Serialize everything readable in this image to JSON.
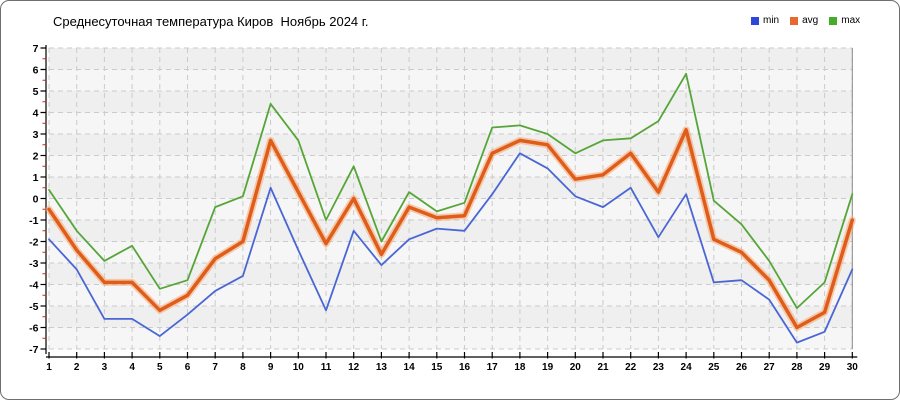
{
  "title": "Среднесуточная температура Киров  Ноябрь 2024 г.",
  "legend": [
    {
      "label": "min",
      "color": "#2b46d9"
    },
    {
      "label": "avg",
      "color": "#e8692f"
    },
    {
      "label": "max",
      "color": "#45ad27"
    }
  ],
  "chart_data": {
    "type": "line",
    "title": "Среднесуточная температура Киров  Ноябрь 2024 г.",
    "xlabel": "",
    "ylabel": "",
    "x": [
      1,
      2,
      3,
      4,
      5,
      6,
      7,
      8,
      9,
      10,
      11,
      12,
      13,
      14,
      15,
      16,
      17,
      18,
      19,
      20,
      21,
      22,
      23,
      24,
      25,
      26,
      27,
      28,
      29,
      30
    ],
    "series": [
      {
        "name": "min",
        "color": "#4a66d5",
        "width": 1.8,
        "values": [
          -1.9,
          -3.3,
          -5.6,
          -5.6,
          -6.4,
          -5.4,
          -4.3,
          -3.6,
          0.5,
          -2.4,
          -5.2,
          -1.5,
          -3.1,
          -1.9,
          -1.4,
          -1.5,
          0.2,
          2.1,
          1.4,
          0.1,
          -0.4,
          0.5,
          -1.8,
          0.2,
          -3.9,
          -3.8,
          -4.7,
          -6.7,
          -6.2,
          -3.3
        ]
      },
      {
        "name": "avg",
        "color": "#e05c1a",
        "halo": "#f5a76f",
        "width": 3.5,
        "values": [
          -0.5,
          -2.4,
          -3.9,
          -3.9,
          -5.2,
          -4.5,
          -2.8,
          -2.0,
          2.7,
          0.3,
          -2.1,
          0.0,
          -2.6,
          -0.4,
          -0.9,
          -0.8,
          2.1,
          2.7,
          2.5,
          0.9,
          1.1,
          2.1,
          0.3,
          3.2,
          -1.9,
          -2.5,
          -3.8,
          -6.0,
          -5.3,
          -1.0
        ]
      },
      {
        "name": "max",
        "color": "#55a637",
        "width": 1.8,
        "values": [
          0.4,
          -1.5,
          -2.9,
          -2.2,
          -4.2,
          -3.8,
          -0.4,
          0.1,
          4.4,
          2.7,
          -1.0,
          1.5,
          -2.0,
          0.3,
          -0.6,
          -0.2,
          3.3,
          3.4,
          3.0,
          2.1,
          2.7,
          2.8,
          3.6,
          5.8,
          -0.1,
          -1.2,
          -2.9,
          -5.1,
          -3.9,
          0.2
        ]
      }
    ],
    "ylim": [
      -7,
      7
    ],
    "ytick_step": 1,
    "yticks": [
      -7,
      -6,
      -5,
      -4,
      -3,
      -2,
      -1,
      0,
      1,
      2,
      3,
      4,
      5,
      6,
      7
    ],
    "grid": "dashed",
    "legend_position": "top-right",
    "axis_color": "#000000",
    "minor_tick_color": "#cc2222",
    "grid_color": "#cbcbcb",
    "plot_bg_colors": [
      "#f6f6f6",
      "#eeefee"
    ]
  }
}
